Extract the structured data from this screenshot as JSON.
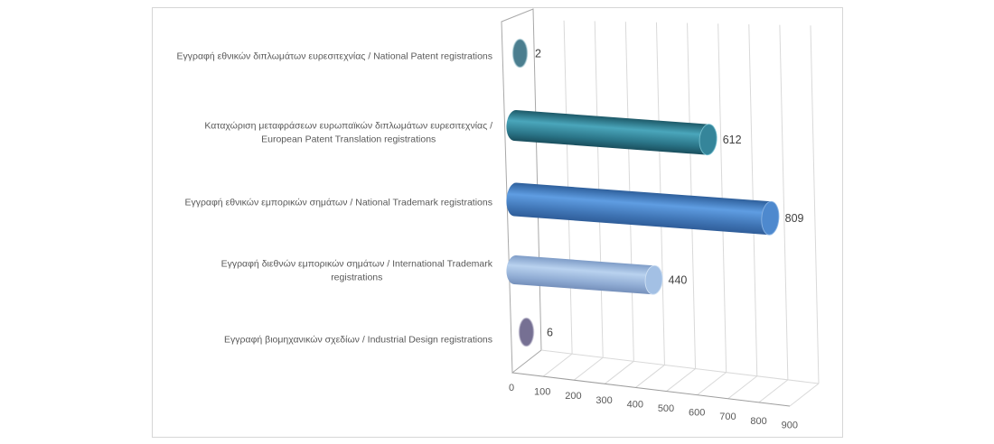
{
  "chart": {
    "background": "#ffffff",
    "frame_border_color": "#d6d6d6",
    "grid_color": "#d9d9d9",
    "axis_color": "#9e9e9e",
    "category_text_color": "#595959",
    "tick_text_color": "#595959",
    "value_text_color": "#3f3f3f"
  },
  "chart_data": {
    "type": "bar",
    "subtype": "horizontal-3d-cylinder",
    "title": "",
    "xlabel": "",
    "ylabel": "",
    "legend": false,
    "grid": true,
    "xlim": [
      0,
      900
    ],
    "x_ticks": [
      0,
      100,
      200,
      300,
      400,
      500,
      600,
      700,
      800,
      900
    ],
    "categories": [
      "Εγγραφή εθνικών διπλωμάτων ευρεσιτεχνίας / National Patent registrations",
      "Καταχώριση μεταφράσεων ευρωπαϊκών διπλωμάτων ευρεσιτεχνίας /\nEuropean Patent Translation registrations",
      "Εγγραφή εθνικών εμπορικών σημάτων / National Trademark registrations",
      "Εγγραφή διεθνών εμπορικών σημάτων / International Trademark\nregistrations",
      "Εγγραφή βιομηχανικών σχεδίων / Industrial Design registrations"
    ],
    "values": [
      2,
      612,
      809,
      440,
      6
    ],
    "value_labels": [
      "2",
      "612",
      "809",
      "440",
      "6"
    ],
    "bar_colors": [
      "#31859c",
      "#31859c",
      "#4f81bd",
      "#95b3d7",
      "#767093"
    ]
  }
}
